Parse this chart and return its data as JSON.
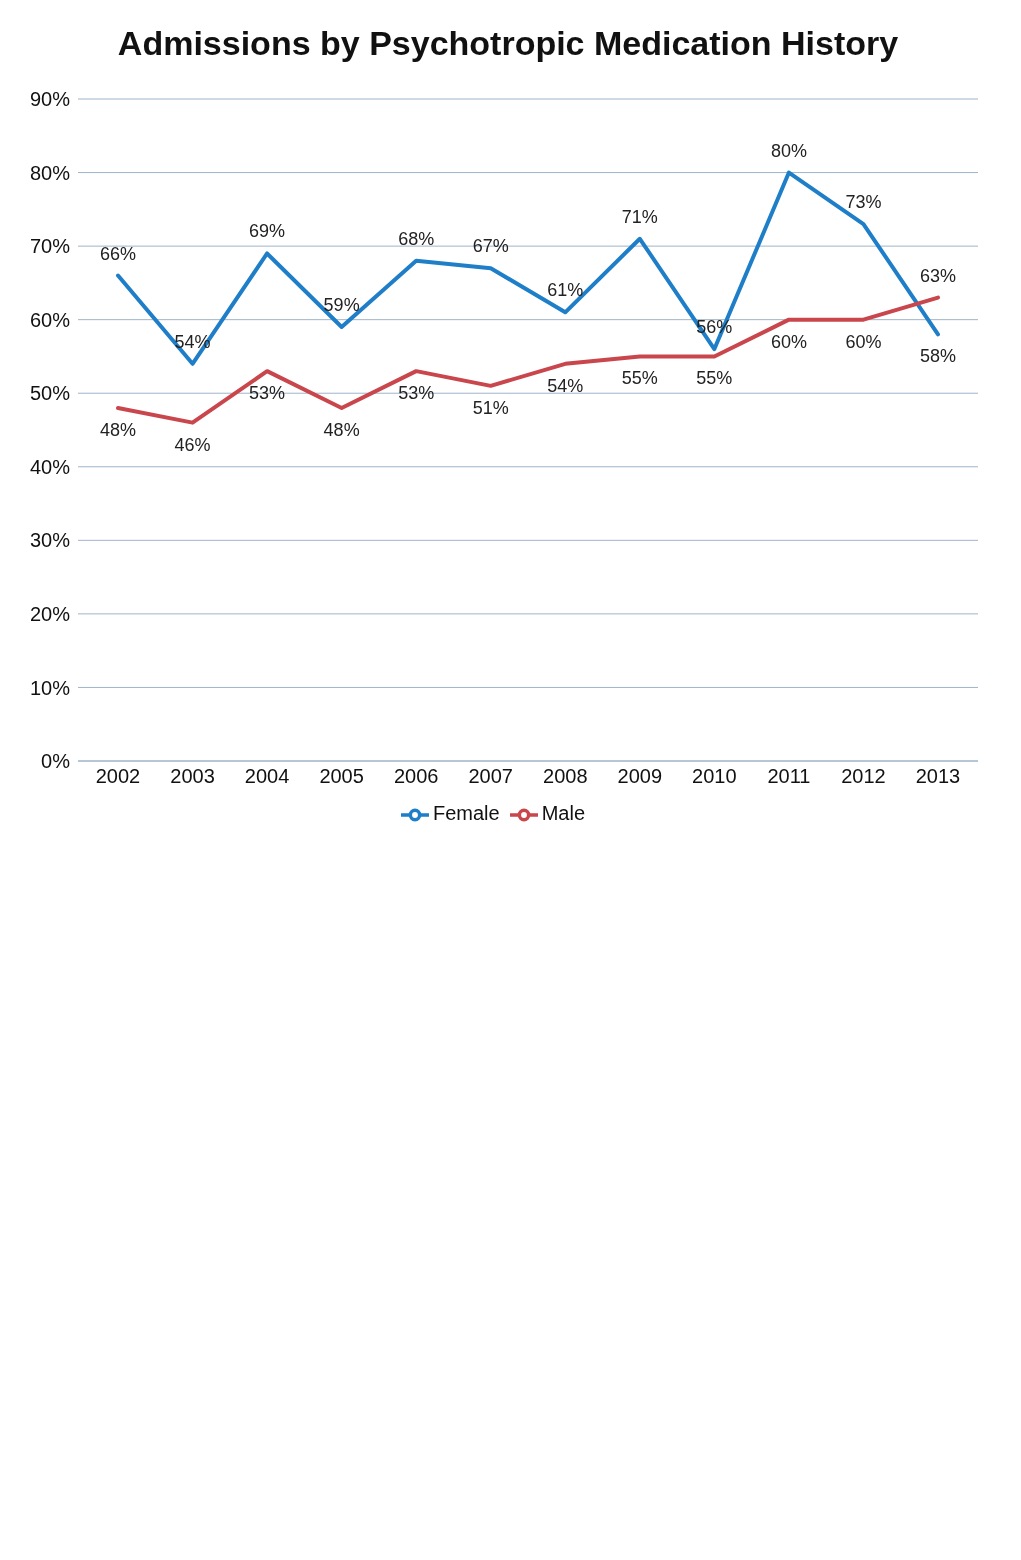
{
  "chart_data": {
    "type": "line",
    "title": "Admissions by Psychotropic Medication History",
    "categories": [
      "2002",
      "2003",
      "2004",
      "2005",
      "2006",
      "2007",
      "2008",
      "2009",
      "2010",
      "2011",
      "2012",
      "2013"
    ],
    "series": [
      {
        "name": "Female",
        "color": "#1f7ec8",
        "values": [
          66,
          54,
          69,
          59,
          68,
          67,
          61,
          71,
          56,
          80,
          73,
          58
        ],
        "value_labels": [
          "66%",
          "54%",
          "69%",
          "59%",
          "68%",
          "67%",
          "61%",
          "71%",
          "56%",
          "80%",
          "73%",
          "58%"
        ]
      },
      {
        "name": "Male",
        "color": "#c9464c",
        "values": [
          48,
          46,
          53,
          48,
          53,
          51,
          54,
          55,
          55,
          60,
          60,
          63
        ],
        "value_labels": [
          "48%",
          "46%",
          "53%",
          "48%",
          "53%",
          "51%",
          "54%",
          "55%",
          "55%",
          "60%",
          "60%",
          "63%"
        ]
      }
    ],
    "ylim": [
      0,
      90
    ],
    "yticks": [
      {
        "value": 0,
        "label": "0%"
      },
      {
        "value": 10,
        "label": "10%"
      },
      {
        "value": 20,
        "label": "20%"
      },
      {
        "value": 30,
        "label": "30%"
      },
      {
        "value": 40,
        "label": "40%"
      },
      {
        "value": 50,
        "label": "50%"
      },
      {
        "value": 60,
        "label": "60%"
      },
      {
        "value": 70,
        "label": "70%"
      },
      {
        "value": 80,
        "label": "80%"
      },
      {
        "value": 90,
        "label": "90%"
      }
    ],
    "grid": "y",
    "legend": "bottom",
    "marker": "none",
    "line_style": "solid"
  }
}
